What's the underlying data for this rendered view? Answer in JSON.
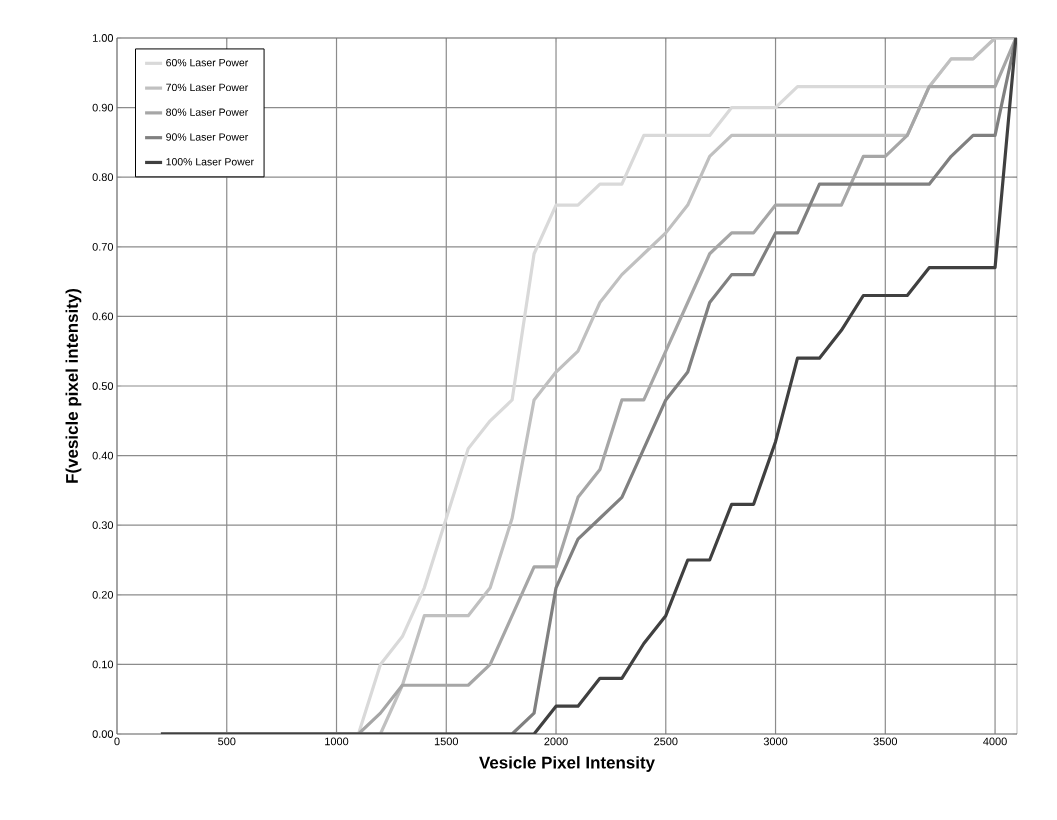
{
  "chart_data": {
    "type": "line",
    "xlabel": "Vesicle Pixel Intensity",
    "ylabel": "F(vesicle pixel intensity)",
    "x": [
      200,
      300,
      400,
      500,
      600,
      700,
      800,
      900,
      1000,
      1100,
      1200,
      1300,
      1400,
      1500,
      1600,
      1700,
      1800,
      1900,
      2000,
      2100,
      2200,
      2300,
      2400,
      2500,
      2600,
      2700,
      2800,
      2900,
      3000,
      3100,
      3200,
      3300,
      3400,
      3500,
      3600,
      3700,
      3800,
      3900,
      4000,
      4095
    ],
    "series": [
      {
        "name": "60% Laser Power",
        "color": "#d9d9d9",
        "values": [
          0,
          0,
          0,
          0,
          0,
          0,
          0,
          0,
          0,
          0,
          0.1,
          0.14,
          0.21,
          0.31,
          0.41,
          0.45,
          0.48,
          0.69,
          0.76,
          0.76,
          0.79,
          0.79,
          0.86,
          0.86,
          0.86,
          0.86,
          0.9,
          0.9,
          0.9,
          0.93,
          0.93,
          0.93,
          0.93,
          0.93,
          0.93,
          0.93,
          0.97,
          0.97,
          1.0,
          1.0
        ]
      },
      {
        "name": "70% Laser Power",
        "color": "#c0c0c0",
        "values": [
          0,
          0,
          0,
          0,
          0,
          0,
          0,
          0,
          0,
          0,
          0,
          0.07,
          0.17,
          0.17,
          0.17,
          0.21,
          0.31,
          0.48,
          0.52,
          0.55,
          0.62,
          0.66,
          0.69,
          0.72,
          0.76,
          0.83,
          0.86,
          0.86,
          0.86,
          0.86,
          0.86,
          0.86,
          0.86,
          0.86,
          0.86,
          0.93,
          0.97,
          0.97,
          1.0,
          1.0
        ]
      },
      {
        "name": "80% Laser Power",
        "color": "#a6a6a6",
        "values": [
          0,
          0,
          0,
          0,
          0,
          0,
          0,
          0,
          0,
          0,
          0.03,
          0.07,
          0.07,
          0.07,
          0.07,
          0.1,
          0.17,
          0.24,
          0.24,
          0.34,
          0.38,
          0.48,
          0.48,
          0.55,
          0.62,
          0.69,
          0.72,
          0.72,
          0.76,
          0.76,
          0.76,
          0.76,
          0.83,
          0.83,
          0.86,
          0.93,
          0.93,
          0.93,
          0.93,
          1.0
        ]
      },
      {
        "name": "90% Laser Power",
        "color": "#808080",
        "values": [
          0,
          0,
          0,
          0,
          0,
          0,
          0,
          0,
          0,
          0,
          0,
          0,
          0,
          0,
          0,
          0,
          0,
          0.03,
          0.21,
          0.28,
          0.31,
          0.34,
          0.41,
          0.48,
          0.52,
          0.62,
          0.66,
          0.66,
          0.72,
          0.72,
          0.79,
          0.79,
          0.79,
          0.79,
          0.79,
          0.79,
          0.83,
          0.86,
          0.86,
          1.0
        ]
      },
      {
        "name": "100% Laser Power",
        "color": "#404040",
        "values": [
          0,
          0,
          0,
          0,
          0,
          0,
          0,
          0,
          0,
          0,
          0,
          0,
          0,
          0,
          0,
          0,
          0,
          0,
          0.04,
          0.04,
          0.08,
          0.08,
          0.13,
          0.17,
          0.25,
          0.25,
          0.33,
          0.33,
          0.42,
          0.54,
          0.54,
          0.58,
          0.63,
          0.63,
          0.63,
          0.67,
          0.67,
          0.67,
          0.67,
          1.0
        ]
      }
    ],
    "xlim": [
      0,
      4100
    ],
    "ylim": [
      0,
      1
    ],
    "xticks": [
      0,
      500,
      1000,
      1500,
      2000,
      2500,
      3000,
      3500,
      4000
    ],
    "yticks": [
      {
        "value": 0,
        "label": "0.00"
      },
      {
        "value": 0.1,
        "label": "0.10"
      },
      {
        "value": 0.2,
        "label": "0.20"
      },
      {
        "value": 0.3,
        "label": "0.30"
      },
      {
        "value": 0.4,
        "label": "0.40"
      },
      {
        "value": 0.5,
        "label": "0.50"
      },
      {
        "value": 0.6,
        "label": "0.60"
      },
      {
        "value": 0.7,
        "label": "0.70"
      },
      {
        "value": 0.8,
        "label": "0.80"
      },
      {
        "value": 0.9,
        "label": "0.90"
      },
      {
        "value": 1.0,
        "label": "1.00"
      }
    ],
    "grid": true,
    "legend": "top left",
    "marker": "none",
    "line_style": "solid"
  }
}
